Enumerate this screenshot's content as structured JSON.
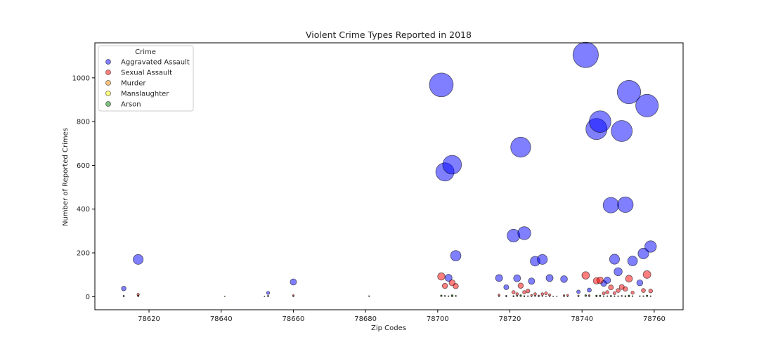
{
  "chart_data": {
    "type": "scatter",
    "title": "Violent Crime Types Reported in 2018",
    "xlabel": "Zip Codes",
    "ylabel": "Number of Reported Crimes",
    "xlim": [
      78605,
      78768
    ],
    "ylim": [
      -60,
      1160
    ],
    "xticks": [
      78620,
      78640,
      78660,
      78680,
      78700,
      78720,
      78740,
      78760
    ],
    "yticks": [
      0,
      200,
      400,
      600,
      800,
      1000
    ],
    "grid": false,
    "legend": {
      "title": "Crime",
      "placement": "top-left"
    },
    "marker_size": "proportional to number of reported crimes",
    "series": [
      {
        "name": "Aggravated Assault",
        "color": "#0000ff",
        "points": [
          [
            78613,
            37
          ],
          [
            78617,
            170
          ],
          [
            78653,
            17
          ],
          [
            78660,
            67
          ],
          [
            78701,
            968
          ],
          [
            78702,
            570
          ],
          [
            78703,
            86
          ],
          [
            78704,
            603
          ],
          [
            78705,
            187
          ],
          [
            78717,
            85
          ],
          [
            78719,
            43
          ],
          [
            78721,
            279
          ],
          [
            78722,
            84
          ],
          [
            78723,
            683
          ],
          [
            78724,
            290
          ],
          [
            78726,
            71
          ],
          [
            78727,
            162
          ],
          [
            78729,
            170
          ],
          [
            78731,
            85
          ],
          [
            78735,
            80
          ],
          [
            78739,
            22
          ],
          [
            78741,
            1105
          ],
          [
            78742,
            30
          ],
          [
            78744,
            766
          ],
          [
            78745,
            800
          ],
          [
            78746,
            60
          ],
          [
            78747,
            75
          ],
          [
            78748,
            418
          ],
          [
            78749,
            171
          ],
          [
            78750,
            114
          ],
          [
            78751,
            757
          ],
          [
            78752,
            420
          ],
          [
            78753,
            935
          ],
          [
            78754,
            163
          ],
          [
            78756,
            63
          ],
          [
            78757,
            197
          ],
          [
            78758,
            873
          ],
          [
            78759,
            229
          ]
        ]
      },
      {
        "name": "Sexual Assault",
        "color": "#ff0000",
        "points": [
          [
            78613,
            3
          ],
          [
            78617,
            10
          ],
          [
            78653,
            3
          ],
          [
            78660,
            5
          ],
          [
            78701,
            92
          ],
          [
            78702,
            49
          ],
          [
            78704,
            63
          ],
          [
            78705,
            48
          ],
          [
            78717,
            7
          ],
          [
            78719,
            3
          ],
          [
            78721,
            20
          ],
          [
            78722,
            12
          ],
          [
            78723,
            50
          ],
          [
            78724,
            20
          ],
          [
            78725,
            26
          ],
          [
            78726,
            6
          ],
          [
            78727,
            12
          ],
          [
            78728,
            4
          ],
          [
            78729,
            12
          ],
          [
            78730,
            15
          ],
          [
            78731,
            8
          ],
          [
            78735,
            5
          ],
          [
            78736,
            6
          ],
          [
            78739,
            4
          ],
          [
            78741,
            97
          ],
          [
            78742,
            5
          ],
          [
            78744,
            72
          ],
          [
            78745,
            75
          ],
          [
            78746,
            15
          ],
          [
            78747,
            20
          ],
          [
            78748,
            42
          ],
          [
            78749,
            16
          ],
          [
            78750,
            28
          ],
          [
            78751,
            44
          ],
          [
            78752,
            35
          ],
          [
            78753,
            82
          ],
          [
            78754,
            18
          ],
          [
            78757,
            28
          ],
          [
            78758,
            101
          ],
          [
            78759,
            26
          ]
        ]
      },
      {
        "name": "Murder",
        "color": "#ff8c00",
        "points": [
          [
            78617,
            4
          ],
          [
            78701,
            4
          ],
          [
            78704,
            3
          ],
          [
            78721,
            2
          ],
          [
            78723,
            3
          ],
          [
            78724,
            2
          ],
          [
            78741,
            4
          ],
          [
            78744,
            3
          ],
          [
            78745,
            3
          ],
          [
            78748,
            2
          ],
          [
            78752,
            2
          ],
          [
            78753,
            3
          ],
          [
            78758,
            3
          ]
        ]
      },
      {
        "name": "Manslaughter",
        "color": "#ffff00",
        "points": [
          [
            78641,
            1
          ],
          [
            78704,
            1
          ],
          [
            78744,
            1
          ],
          [
            78753,
            1
          ]
        ]
      },
      {
        "name": "Arson",
        "color": "#008000",
        "points": [
          [
            78613,
            2
          ],
          [
            78617,
            2
          ],
          [
            78652,
            1
          ],
          [
            78653,
            2
          ],
          [
            78660,
            2
          ],
          [
            78681,
            2
          ],
          [
            78701,
            4
          ],
          [
            78702,
            3
          ],
          [
            78703,
            2
          ],
          [
            78704,
            5
          ],
          [
            78705,
            3
          ],
          [
            78717,
            2
          ],
          [
            78719,
            2
          ],
          [
            78721,
            2
          ],
          [
            78722,
            3
          ],
          [
            78723,
            5
          ],
          [
            78724,
            2
          ],
          [
            78725,
            2
          ],
          [
            78726,
            1
          ],
          [
            78727,
            3
          ],
          [
            78728,
            2
          ],
          [
            78729,
            2
          ],
          [
            78730,
            1
          ],
          [
            78731,
            2
          ],
          [
            78732,
            1
          ],
          [
            78733,
            1
          ],
          [
            78735,
            2
          ],
          [
            78736,
            1
          ],
          [
            78739,
            1
          ],
          [
            78741,
            5
          ],
          [
            78742,
            2
          ],
          [
            78744,
            4
          ],
          [
            78745,
            4
          ],
          [
            78746,
            2
          ],
          [
            78747,
            2
          ],
          [
            78748,
            3
          ],
          [
            78749,
            2
          ],
          [
            78750,
            2
          ],
          [
            78751,
            3
          ],
          [
            78752,
            2
          ],
          [
            78753,
            4
          ],
          [
            78754,
            2
          ],
          [
            78756,
            2
          ],
          [
            78757,
            2
          ],
          [
            78758,
            4
          ],
          [
            78759,
            2
          ]
        ]
      }
    ]
  }
}
